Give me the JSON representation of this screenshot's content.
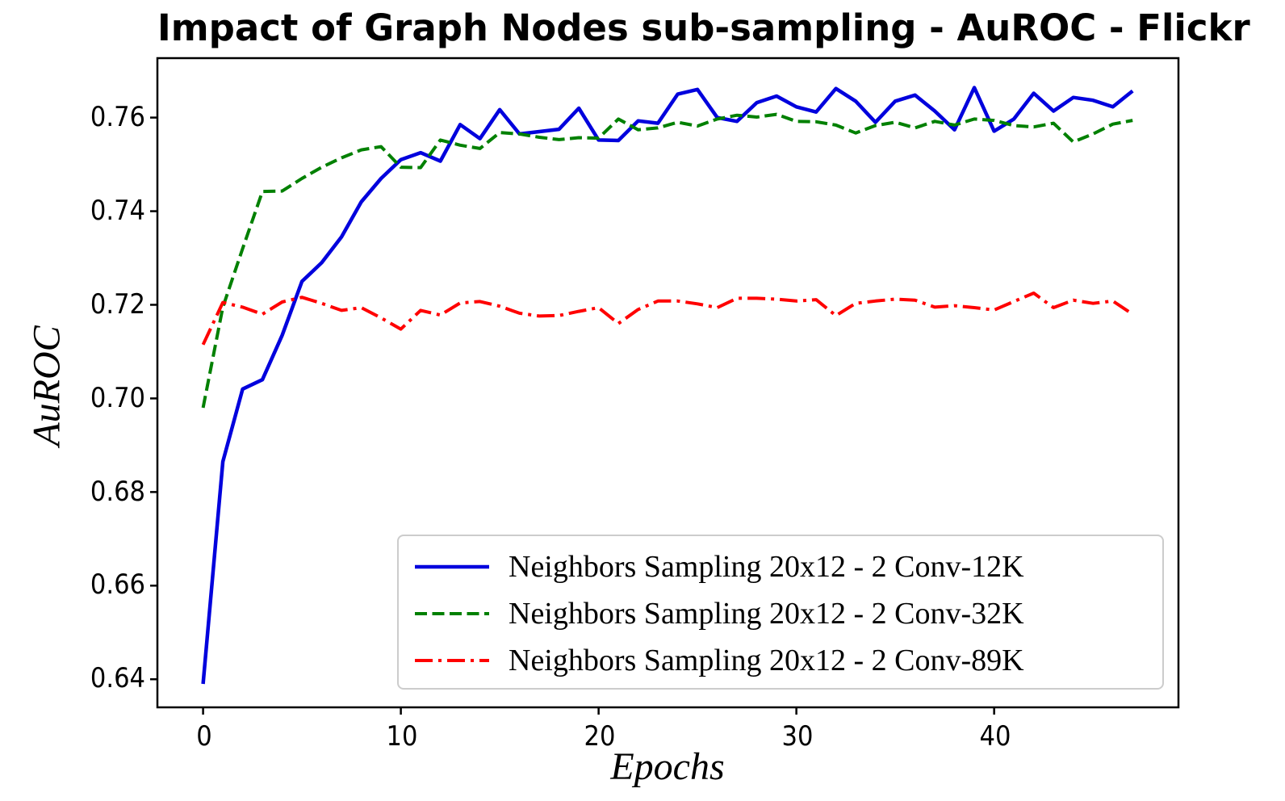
{
  "chart_data": {
    "type": "line",
    "title": "Impact of Graph Nodes sub-sampling - AuROC - Flickr",
    "xlabel": "Epochs",
    "ylabel": "AuROC",
    "xlim": [
      -2.31,
      49.32
    ],
    "ylim": [
      0.634,
      0.7727
    ],
    "grid": false,
    "legend_position": "lower right",
    "xticks": [
      0,
      10,
      20,
      30,
      40
    ],
    "xtick_labels": [
      "0",
      "10",
      "20",
      "30",
      "40"
    ],
    "yticks": [
      0.64,
      0.66,
      0.68,
      0.7,
      0.72,
      0.74,
      0.76
    ],
    "ytick_labels": [
      "0.64",
      "0.66",
      "0.68",
      "0.70",
      "0.72",
      "0.74",
      "0.76"
    ],
    "x": [
      0,
      1,
      2,
      3,
      4,
      5,
      6,
      7,
      8,
      9,
      10,
      11,
      12,
      13,
      14,
      15,
      16,
      17,
      18,
      19,
      20,
      21,
      22,
      23,
      24,
      25,
      26,
      27,
      28,
      29,
      30,
      31,
      32,
      33,
      34,
      35,
      36,
      37,
      38,
      39,
      40,
      41,
      42,
      43,
      44,
      45,
      46,
      47
    ],
    "series": [
      {
        "name": "Neighbors Sampling 20x12 - 2 Conv-12K",
        "color": "#0000dd",
        "linestyle": "solid",
        "width": 4.5,
        "values": [
          0.639,
          0.6865,
          0.702,
          0.704,
          0.7135,
          0.725,
          0.729,
          0.7345,
          0.742,
          0.747,
          0.751,
          0.7525,
          0.7507,
          0.7585,
          0.7555,
          0.7617,
          0.7565,
          0.757,
          0.7575,
          0.762,
          0.7552,
          0.7551,
          0.7593,
          0.7588,
          0.765,
          0.766,
          0.76,
          0.7592,
          0.7632,
          0.7646,
          0.7623,
          0.7612,
          0.7662,
          0.7635,
          0.759,
          0.7635,
          0.7648,
          0.7614,
          0.7574,
          0.7664,
          0.7571,
          0.7597,
          0.7652,
          0.7614,
          0.7643,
          0.7637,
          0.7623,
          0.7657
        ]
      },
      {
        "name": "Neighbors Sampling 20x12 - 2 Conv-32K",
        "color": "#008000",
        "linestyle": "dashed",
        "width": 4,
        "values": [
          0.698,
          0.7195,
          0.732,
          0.7442,
          0.7443,
          0.747,
          0.7494,
          0.7514,
          0.7531,
          0.7538,
          0.7494,
          0.7493,
          0.7552,
          0.7541,
          0.7534,
          0.7568,
          0.7565,
          0.7558,
          0.7553,
          0.7557,
          0.7556,
          0.7597,
          0.7574,
          0.7578,
          0.759,
          0.7582,
          0.7597,
          0.7605,
          0.7601,
          0.7607,
          0.7592,
          0.7591,
          0.7584,
          0.7567,
          0.7583,
          0.759,
          0.7578,
          0.7592,
          0.7584,
          0.7597,
          0.7594,
          0.7583,
          0.758,
          0.7588,
          0.7548,
          0.7565,
          0.7586,
          0.7594
        ]
      },
      {
        "name": "Neighbors Sampling 20x12 - 2 Conv-89K",
        "color": "#ff0000",
        "linestyle": "dashdot",
        "width": 4,
        "values": [
          0.7115,
          0.7205,
          0.7195,
          0.718,
          0.7206,
          0.7216,
          0.7203,
          0.7188,
          0.7194,
          0.7172,
          0.7148,
          0.7188,
          0.7178,
          0.7204,
          0.7207,
          0.7197,
          0.7182,
          0.7176,
          0.7177,
          0.7186,
          0.7194,
          0.716,
          0.719,
          0.7208,
          0.7208,
          0.7202,
          0.7194,
          0.7214,
          0.7214,
          0.7212,
          0.7208,
          0.7211,
          0.7177,
          0.7203,
          0.7208,
          0.7212,
          0.721,
          0.7195,
          0.7198,
          0.7194,
          0.7189,
          0.7207,
          0.7225,
          0.7194,
          0.721,
          0.7203,
          0.7208,
          0.718
        ]
      }
    ]
  }
}
